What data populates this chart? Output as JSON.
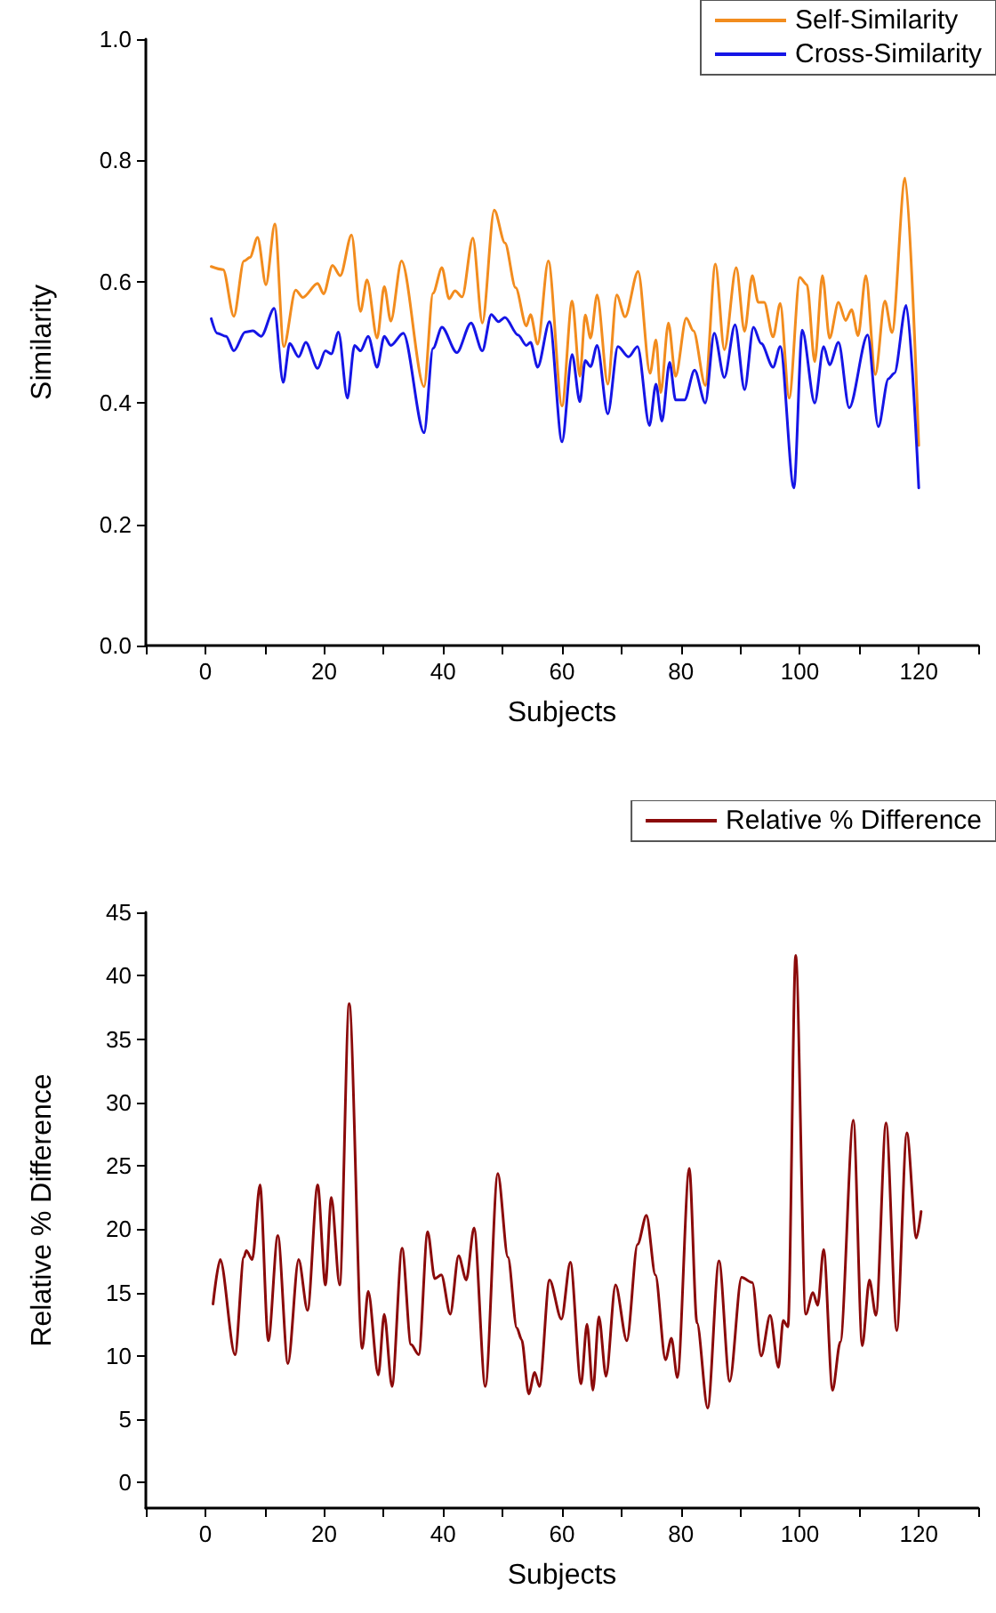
{
  "chart_data": [
    {
      "type": "line",
      "xlabel": "Subjects",
      "ylabel": "Similarity",
      "legend": "top right",
      "xlim": [
        -10,
        130
      ],
      "xticks": [
        {
          "value": -10,
          "label": null
        },
        0,
        {
          "value": 10,
          "label": null
        },
        20,
        {
          "value": 30,
          "label": null
        },
        40,
        {
          "value": 50,
          "label": null
        },
        60,
        {
          "value": 70,
          "label": null
        },
        80,
        {
          "value": 90,
          "label": null
        },
        100,
        {
          "value": 110,
          "label": null
        },
        120,
        {
          "value": 130,
          "label": null
        }
      ],
      "ylim": [
        0,
        1
      ],
      "yticks": [
        {
          "value": 0,
          "label": "0.0"
        },
        {
          "value": 0.2,
          "label": "0.2"
        },
        {
          "value": 0.4,
          "label": "0.4"
        },
        {
          "value": 0.6,
          "label": "0.6"
        },
        {
          "value": 0.8,
          "label": "0.8"
        },
        {
          "value": 1,
          "label": "1.0"
        }
      ],
      "series": [
        {
          "name": "Self-Similarity",
          "color": "#f28c1e",
          "x": [
            1,
            3,
            4.8,
            6.5,
            7.5,
            8.8,
            10.2,
            11.7,
            13.2,
            15.2,
            16.4,
            18.9,
            19.9,
            21.4,
            22.7,
            24.6,
            26.1,
            27.2,
            28.9,
            30.1,
            31.2,
            33,
            36.8,
            38.3,
            39.8,
            41,
            42,
            43.2,
            45,
            46.6,
            48.6,
            50.4,
            52.2,
            54,
            54.7,
            55.9,
            57.7,
            60,
            61.7,
            63,
            63.9,
            64.8,
            65.9,
            67.7,
            69.2,
            70.6,
            72.8,
            74.8,
            75.8,
            76.6,
            77.9,
            79.1,
            80.9,
            82.1,
            84.1,
            85.8,
            87.3,
            89.3,
            90.7,
            92,
            93,
            94,
            95.5,
            96.7,
            98.2,
            100,
            101.2,
            102.5,
            103.8,
            105,
            106.5,
            107.7,
            108.7,
            109.8,
            111.1,
            112.7,
            114.3,
            115.5,
            117.7,
            120
          ],
          "values": [
            0.625,
            0.62,
            0.543,
            0.634,
            0.64,
            0.673,
            0.595,
            0.695,
            0.493,
            0.586,
            0.574,
            0.597,
            0.58,
            0.627,
            0.61,
            0.677,
            0.551,
            0.603,
            0.507,
            0.592,
            0.535,
            0.634,
            0.427,
            0.581,
            0.623,
            0.572,
            0.585,
            0.575,
            0.672,
            0.532,
            0.718,
            0.664,
            0.59,
            0.527,
            0.546,
            0.497,
            0.634,
            0.395,
            0.568,
            0.444,
            0.545,
            0.507,
            0.578,
            0.431,
            0.578,
            0.542,
            0.617,
            0.449,
            0.504,
            0.417,
            0.532,
            0.444,
            0.54,
            0.519,
            0.429,
            0.629,
            0.488,
            0.623,
            0.518,
            0.61,
            0.566,
            0.566,
            0.509,
            0.564,
            0.408,
            0.607,
            0.595,
            0.468,
            0.61,
            0.507,
            0.566,
            0.536,
            0.554,
            0.511,
            0.61,
            0.447,
            0.568,
            0.516,
            0.771,
            0.33
          ]
        },
        {
          "name": "Cross-Similarity",
          "color": "#1515e6",
          "x": [
            1,
            2,
            3.5,
            4.8,
            6.7,
            8,
            9.4,
            11.6,
            13.1,
            14.2,
            15.7,
            16.9,
            18.9,
            20.2,
            21.2,
            22.4,
            23.9,
            25.1,
            26.1,
            27.4,
            28.9,
            30.1,
            31.2,
            33.3,
            36.8,
            38.3,
            39.8,
            42.3,
            44.7,
            46.6,
            48.1,
            49.3,
            50.4,
            52.6,
            54,
            54.7,
            55.9,
            57.9,
            60,
            61.7,
            63,
            63.9,
            64.8,
            65.9,
            67.7,
            69.4,
            71.2,
            72.7,
            74.7,
            75.8,
            76.8,
            78.1,
            79.1,
            80.6,
            82.3,
            84.1,
            85.6,
            87.3,
            89.1,
            90.7,
            92.2,
            93.5,
            95.5,
            96.7,
            99,
            100.4,
            102.5,
            104,
            105,
            106.5,
            108.3,
            111.4,
            113.2,
            114.9,
            115.9,
            117.9,
            120
          ],
          "values": [
            0.539,
            0.515,
            0.51,
            0.486,
            0.517,
            0.519,
            0.51,
            0.556,
            0.434,
            0.498,
            0.476,
            0.5,
            0.457,
            0.486,
            0.481,
            0.517,
            0.408,
            0.495,
            0.486,
            0.51,
            0.459,
            0.51,
            0.495,
            0.515,
            0.351,
            0.49,
            0.525,
            0.483,
            0.532,
            0.486,
            0.546,
            0.534,
            0.541,
            0.512,
            0.495,
            0.5,
            0.459,
            0.534,
            0.336,
            0.48,
            0.402,
            0.47,
            0.46,
            0.495,
            0.382,
            0.493,
            0.476,
            0.493,
            0.363,
            0.431,
            0.37,
            0.467,
            0.405,
            0.405,
            0.454,
            0.4,
            0.515,
            0.442,
            0.529,
            0.422,
            0.525,
            0.498,
            0.459,
            0.493,
            0.26,
            0.52,
            0.4,
            0.493,
            0.463,
            0.5,
            0.392,
            0.512,
            0.361,
            0.44,
            0.449,
            0.561,
            0.26
          ]
        }
      ]
    },
    {
      "type": "line",
      "xlabel": "Subjects",
      "ylabel": "Relative % Difference",
      "legend": "top right",
      "xlim": [
        -10,
        130
      ],
      "xticks": [
        {
          "value": -10,
          "label": null
        },
        0,
        {
          "value": 10,
          "label": null
        },
        20,
        {
          "value": 30,
          "label": null
        },
        40,
        {
          "value": 50,
          "label": null
        },
        60,
        {
          "value": 70,
          "label": null
        },
        80,
        {
          "value": 90,
          "label": null
        },
        100,
        {
          "value": 110,
          "label": null
        },
        120,
        {
          "value": 130,
          "label": null
        }
      ],
      "ylim": [
        -2,
        45
      ],
      "yticks": [
        0,
        5,
        10,
        15,
        20,
        25,
        30,
        35,
        40,
        45
      ],
      "series": [
        {
          "name": "Relative % Difference",
          "color": "#8b0a0a",
          "x": [
            1.3,
            2.5,
            5,
            6.5,
            6.9,
            7.9,
            9.2,
            10.6,
            12.2,
            13.9,
            15.7,
            17.2,
            18.9,
            20.2,
            21.2,
            22.6,
            24.2,
            26.4,
            27.4,
            29.1,
            30.1,
            31.4,
            33.1,
            34.6,
            35.9,
            37.4,
            38.6,
            39.7,
            41.2,
            42.6,
            43.9,
            45.2,
            47.1,
            49.2,
            50.9,
            52.4,
            53.2,
            54.4,
            55.4,
            56.2,
            57.9,
            59.9,
            61.4,
            63.2,
            64.2,
            65.2,
            66.2,
            67.4,
            69,
            70.9,
            72.7,
            74.2,
            75.7,
            77.4,
            78.4,
            79.4,
            81.4,
            82.7,
            84.5,
            86.4,
            88.2,
            90.2,
            92,
            93.5,
            95,
            96.4,
            97.2,
            98,
            99.3,
            101,
            102.2,
            103,
            104,
            105.5,
            106.8,
            109,
            110.5,
            111.7,
            112.8,
            114.5,
            116.3,
            118,
            119.6,
            120.4
          ],
          "values": [
            14.1,
            17.6,
            10.1,
            17.8,
            18.3,
            17.6,
            23.5,
            11.2,
            19.5,
            9.4,
            17.6,
            13.6,
            23.5,
            15.6,
            22.5,
            15.6,
            37.8,
            10.6,
            15.1,
            8.5,
            13.3,
            7.6,
            18.5,
            10.9,
            10.1,
            19.8,
            16.1,
            16.4,
            13.3,
            17.9,
            16,
            20.1,
            7.6,
            24.4,
            17.8,
            12.2,
            11.3,
            7,
            8.7,
            7.6,
            16,
            12.9,
            17.4,
            7.8,
            12.5,
            7.3,
            13.1,
            8.4,
            15.6,
            11.2,
            18.8,
            21.1,
            16.4,
            9.7,
            11.4,
            8.3,
            24.8,
            12.6,
            5.9,
            17.5,
            8,
            16.2,
            15.8,
            10,
            13.2,
            9.1,
            12.8,
            12.3,
            41.6,
            13.3,
            15,
            14,
            18.4,
            7.3,
            11.1,
            28.6,
            10.8,
            16,
            13.2,
            28.4,
            12,
            27.6,
            19.3,
            21.4
          ]
        }
      ]
    }
  ]
}
